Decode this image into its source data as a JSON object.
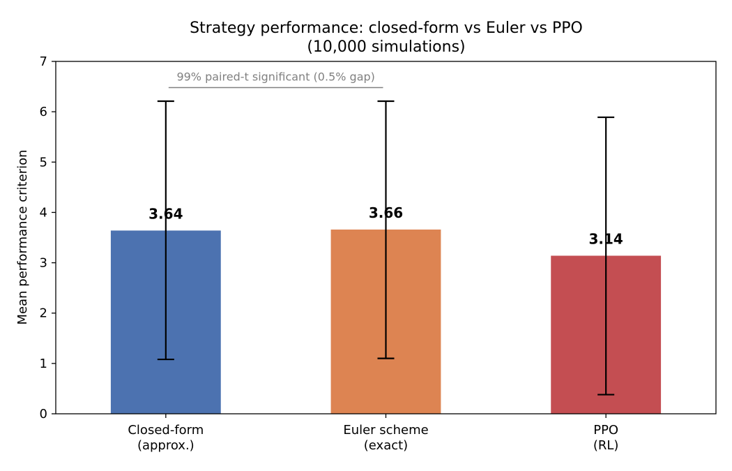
{
  "chart_data": {
    "type": "bar",
    "title": "Strategy performance: closed-form vs Euler vs PPO",
    "subtitle": "(10,000 simulations)",
    "xlabel": "",
    "ylabel": "Mean performance criterion",
    "ylim": [
      0,
      7
    ],
    "yticks": [
      "0",
      "1",
      "2",
      "3",
      "4",
      "5",
      "6",
      "7"
    ],
    "grid": false,
    "categories": [
      [
        "Closed-form",
        "(approx.)"
      ],
      [
        "Euler scheme",
        "(exact)"
      ],
      [
        "PPO",
        "(RL)"
      ]
    ],
    "values": [
      3.64,
      3.66,
      3.14
    ],
    "data_labels": [
      "3.64",
      "3.66",
      "3.14"
    ],
    "error_low": [
      1.08,
      1.1,
      0.38
    ],
    "error_high": [
      6.21,
      6.21,
      5.89
    ],
    "colors": [
      "#4c72b0",
      "#dd8452",
      "#c44e52"
    ],
    "annotation": {
      "text": "99% paired-t significant (0.5% gap)",
      "from_category": 0,
      "to_category": 1,
      "y": 6.48,
      "color": "#808080"
    }
  }
}
